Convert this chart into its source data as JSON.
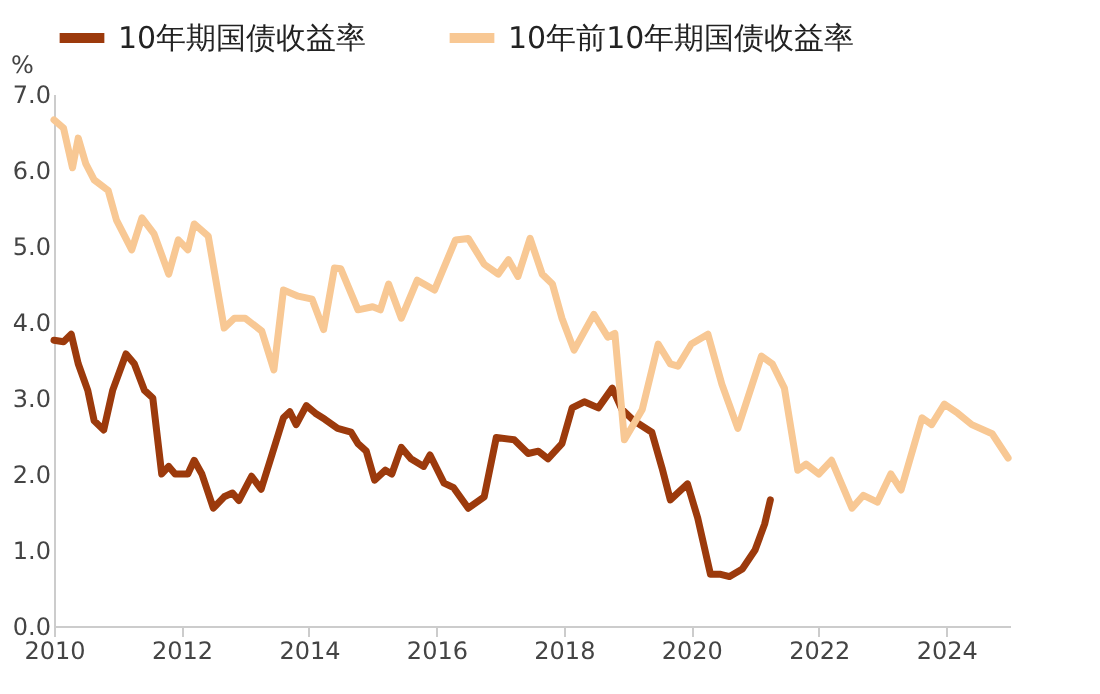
{
  "chart_data": {
    "type": "line",
    "ylabel": "%",
    "xlim": [
      2010,
      2025
    ],
    "xticks": [
      2010,
      2012,
      2014,
      2016,
      2018,
      2020,
      2022,
      2024
    ],
    "ylim": [
      0,
      7
    ],
    "yticks": [
      {
        "value": 0,
        "label": "0.0"
      },
      {
        "value": 1,
        "label": "1.0"
      },
      {
        "value": 2,
        "label": "2.0"
      },
      {
        "value": 3,
        "label": "3.0"
      },
      {
        "value": 4,
        "label": "4.0"
      },
      {
        "value": 5,
        "label": "5.0"
      },
      {
        "value": 6,
        "label": "6.0"
      },
      {
        "value": 7,
        "label": "7.0"
      }
    ],
    "grid": false,
    "legend": "top",
    "line_style": "solid",
    "marker": "none",
    "series": [
      {
        "name": "10年期国债收益率",
        "color": "#9c3a0c",
        "x": [
          2010.0,
          2010.15,
          2010.27,
          2010.38,
          2010.53,
          2010.63,
          2010.78,
          2010.92,
          2011.13,
          2011.26,
          2011.42,
          2011.55,
          2011.69,
          2011.8,
          2011.9,
          2012.1,
          2012.2,
          2012.32,
          2012.5,
          2012.67,
          2012.8,
          2012.9,
          2013.1,
          2013.25,
          2013.4,
          2013.6,
          2013.7,
          2013.8,
          2013.96,
          2014.1,
          2014.25,
          2014.45,
          2014.66,
          2014.77,
          2014.9,
          2015.03,
          2015.2,
          2015.3,
          2015.45,
          2015.6,
          2015.8,
          2015.9,
          2016.12,
          2016.27,
          2016.5,
          2016.75,
          2016.94,
          2017.22,
          2017.44,
          2017.6,
          2017.75,
          2017.97,
          2018.13,
          2018.32,
          2018.54,
          2018.76,
          2018.91,
          2019.1,
          2019.38,
          2019.54,
          2019.67,
          2019.94,
          2020.1,
          2020.3,
          2020.46,
          2020.6,
          2020.8,
          2021.0,
          2021.15,
          2021.24
        ],
        "values": [
          3.76,
          3.74,
          3.84,
          3.45,
          3.1,
          2.7,
          2.58,
          3.1,
          3.58,
          3.45,
          3.1,
          3.0,
          2.0,
          2.1,
          2.0,
          2.0,
          2.18,
          2.0,
          1.55,
          1.7,
          1.75,
          1.65,
          1.97,
          1.8,
          2.2,
          2.74,
          2.82,
          2.65,
          2.9,
          2.8,
          2.72,
          2.6,
          2.55,
          2.4,
          2.3,
          1.92,
          2.05,
          2.0,
          2.35,
          2.2,
          2.1,
          2.25,
          1.88,
          1.82,
          1.55,
          1.7,
          2.48,
          2.45,
          2.27,
          2.3,
          2.2,
          2.4,
          2.87,
          2.95,
          2.87,
          3.13,
          2.85,
          2.7,
          2.55,
          2.08,
          1.66,
          1.87,
          1.42,
          0.68,
          0.68,
          0.65,
          0.75,
          1.0,
          1.34,
          1.66
        ]
      },
      {
        "name": "10年前10年期国债收益率",
        "color": "#f8c894",
        "x": [
          2010.0,
          2010.15,
          2010.29,
          2010.38,
          2010.5,
          2010.63,
          2010.85,
          2010.98,
          2011.22,
          2011.38,
          2011.57,
          2011.8,
          2011.95,
          2012.1,
          2012.2,
          2012.42,
          2012.67,
          2012.83,
          2013.0,
          2013.26,
          2013.45,
          2013.6,
          2013.83,
          2014.05,
          2014.23,
          2014.4,
          2014.5,
          2014.77,
          2015.0,
          2015.12,
          2015.25,
          2015.45,
          2015.7,
          2015.97,
          2016.3,
          2016.5,
          2016.75,
          2016.97,
          2017.13,
          2017.28,
          2017.47,
          2017.66,
          2017.82,
          2017.97,
          2018.16,
          2018.47,
          2018.69,
          2018.8,
          2018.95,
          2019.23,
          2019.48,
          2019.67,
          2019.79,
          2020.0,
          2020.26,
          2020.48,
          2020.73,
          2021.1,
          2021.27,
          2021.46,
          2021.67,
          2021.8,
          2022.0,
          2022.2,
          2022.52,
          2022.7,
          2022.92,
          2023.13,
          2023.29,
          2023.62,
          2023.77,
          2023.97,
          2024.18,
          2024.4,
          2024.72,
          2024.97
        ],
        "values": [
          6.66,
          6.55,
          6.03,
          6.42,
          6.08,
          5.87,
          5.73,
          5.34,
          4.95,
          5.37,
          5.16,
          4.63,
          5.08,
          4.95,
          5.29,
          5.13,
          3.92,
          4.05,
          4.05,
          3.88,
          3.37,
          4.42,
          4.34,
          4.3,
          3.9,
          4.71,
          4.7,
          4.16,
          4.2,
          4.16,
          4.5,
          4.05,
          4.55,
          4.42,
          5.08,
          5.1,
          4.76,
          4.63,
          4.82,
          4.6,
          5.1,
          4.63,
          4.5,
          4.05,
          3.63,
          4.1,
          3.8,
          3.85,
          2.45,
          2.85,
          3.71,
          3.45,
          3.42,
          3.71,
          3.84,
          3.18,
          2.6,
          3.55,
          3.45,
          3.13,
          2.05,
          2.13,
          2.0,
          2.18,
          1.55,
          1.72,
          1.63,
          2.0,
          1.79,
          2.74,
          2.65,
          2.92,
          2.8,
          2.65,
          2.53,
          2.21
        ]
      }
    ]
  }
}
